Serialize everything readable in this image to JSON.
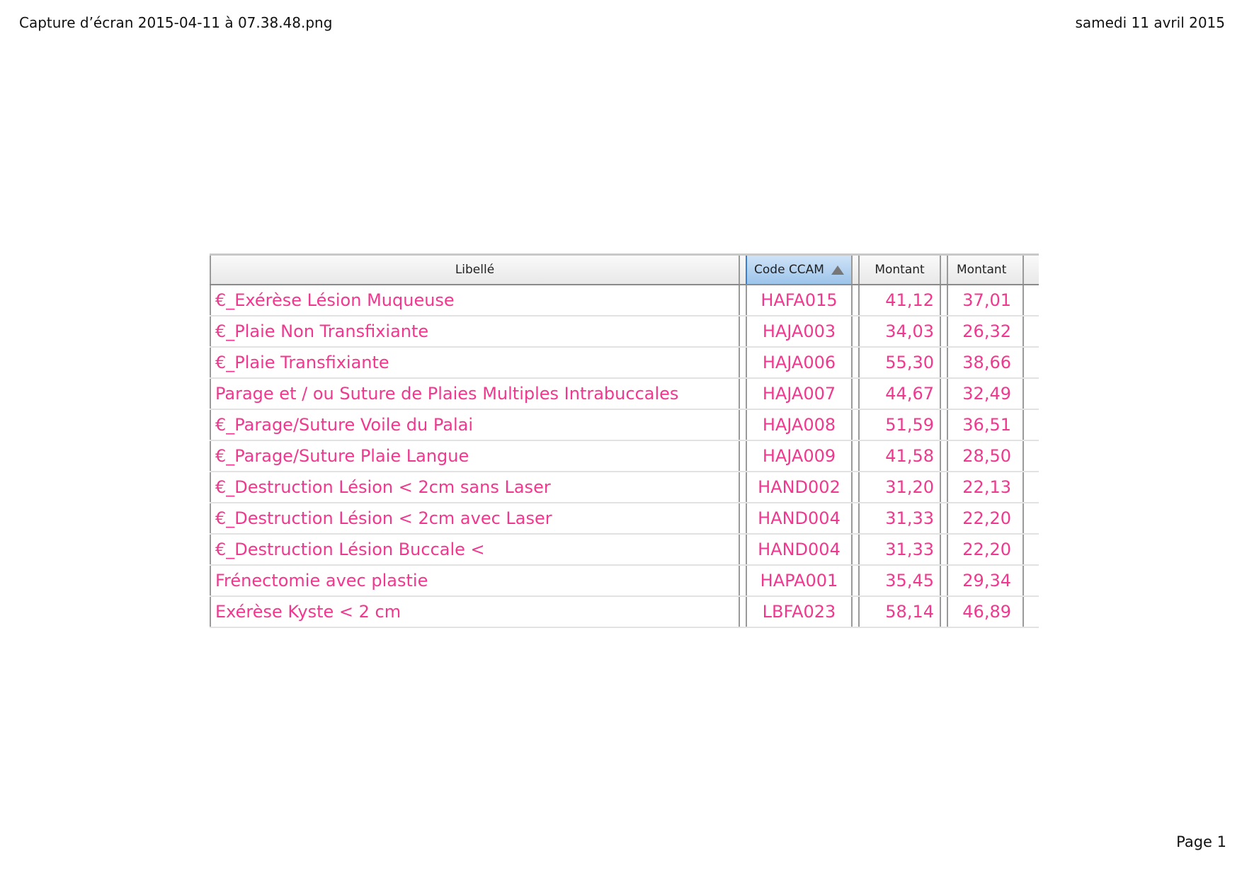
{
  "page_header": {
    "filename": "Capture d’écran 2015-04-11 à 07.38.48.png",
    "date": "samedi 11 avril 2015"
  },
  "page_footer": {
    "page": "Page 1"
  },
  "table": {
    "columns": [
      "Libellé",
      "Code CCAM",
      "Montant",
      "Montant"
    ],
    "sorted_column": "Code CCAM",
    "sort_direction": "ascending",
    "text_color": "#f0388f",
    "rows": [
      {
        "libelle": "€_Exérèse Lésion Muqueuse",
        "code": "HAFA015",
        "montant1": "41,12",
        "montant2": "37,01"
      },
      {
        "libelle": "€_Plaie Non Transfixiante",
        "code": "HAJA003",
        "montant1": "34,03",
        "montant2": "26,32"
      },
      {
        "libelle": "€_Plaie Transfixiante",
        "code": "HAJA006",
        "montant1": "55,30",
        "montant2": "38,66"
      },
      {
        "libelle": "Parage et / ou Suture  de Plaies Multiples Intrabuccales",
        "code": "HAJA007",
        "montant1": "44,67",
        "montant2": "32,49"
      },
      {
        "libelle": "€_Parage/Suture Voile du Palai",
        "code": "HAJA008",
        "montant1": "51,59",
        "montant2": "36,51"
      },
      {
        "libelle": "€_Parage/Suture Plaie Langue",
        "code": "HAJA009",
        "montant1": "41,58",
        "montant2": "28,50"
      },
      {
        "libelle": "€_Destruction Lésion < 2cm sans Laser",
        "code": "HAND002",
        "montant1": "31,20",
        "montant2": "22,13"
      },
      {
        "libelle": "€_Destruction Lésion < 2cm avec Laser",
        "code": "HAND004",
        "montant1": "31,33",
        "montant2": "22,20"
      },
      {
        "libelle": "€_Destruction Lésion Buccale <",
        "code": "HAND004",
        "montant1": "31,33",
        "montant2": "22,20"
      },
      {
        "libelle": "Frénectomie avec plastie",
        "code": "HAPA001",
        "montant1": "35,45",
        "montant2": "29,34"
      },
      {
        "libelle": "Exérèse Kyste < 2 cm",
        "code": "LBFA023",
        "montant1": "58,14",
        "montant2": "46,89"
      }
    ]
  }
}
